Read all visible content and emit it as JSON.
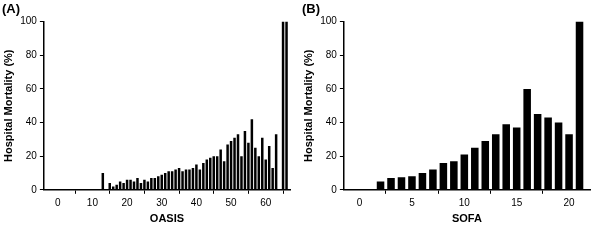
{
  "chart_data": [
    {
      "type": "bar",
      "title": "(A)",
      "xlabel": "OASIS",
      "ylabel": "Hospital Mortality (%)",
      "x": [
        13,
        14,
        15,
        16,
        17,
        18,
        19,
        20,
        21,
        22,
        23,
        24,
        25,
        26,
        27,
        28,
        29,
        30,
        31,
        32,
        33,
        34,
        35,
        36,
        37,
        38,
        39,
        40,
        41,
        42,
        43,
        44,
        45,
        46,
        47,
        48,
        49,
        50,
        51,
        52,
        53,
        54,
        55,
        56,
        57,
        58,
        59,
        60,
        61,
        62,
        63,
        64,
        65,
        66
      ],
      "values": [
        10,
        0,
        4,
        2,
        3,
        5,
        4,
        6,
        6,
        5,
        7,
        4,
        6,
        5,
        7,
        7,
        8,
        9,
        10,
        11,
        11,
        12,
        13,
        11,
        12,
        12,
        13,
        15,
        12,
        16,
        18,
        19,
        20,
        20,
        24,
        17,
        27,
        29,
        31,
        33,
        20,
        35,
        28,
        42,
        25,
        20,
        31,
        18,
        26,
        13,
        33,
        0,
        100,
        100
      ],
      "color": "#000000",
      "xlim": [
        -4,
        67
      ],
      "ylim": [
        0,
        100
      ],
      "xticks": [
        0,
        10,
        20,
        30,
        40,
        50,
        60
      ],
      "yticks": [
        0,
        20,
        40,
        60,
        80,
        100
      ],
      "grid": false
    },
    {
      "type": "bar",
      "title": "(B)",
      "xlabel": "SOFA",
      "ylabel": "Hospital Mortality (%)",
      "x": [
        2,
        3,
        4,
        5,
        6,
        7,
        8,
        9,
        10,
        11,
        12,
        13,
        14,
        15,
        16,
        17,
        18,
        19,
        20,
        21
      ],
      "values": [
        5,
        7,
        7.5,
        8,
        10,
        12,
        16,
        17,
        21,
        25,
        29,
        33,
        39,
        37,
        60,
        45,
        43,
        40,
        33,
        100
      ],
      "color": "#000000",
      "xlim": [
        -1.5,
        22
      ],
      "ylim": [
        0,
        100
      ],
      "xticks": [
        0,
        5,
        10,
        15,
        20
      ],
      "yticks": [
        0,
        20,
        40,
        60,
        80,
        100
      ],
      "grid": false
    }
  ]
}
